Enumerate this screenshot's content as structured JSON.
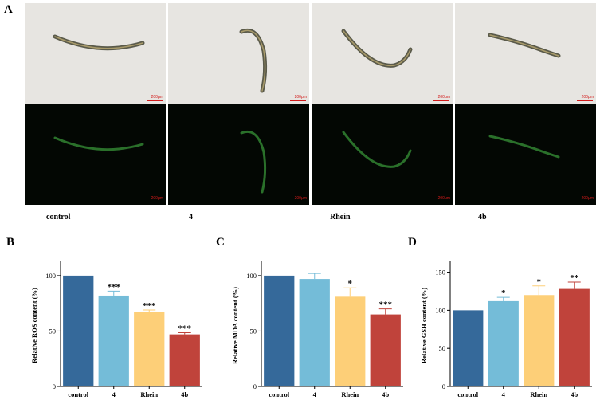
{
  "panels": {
    "a_letter": "A",
    "b_letter": "B",
    "c_letter": "C",
    "d_letter": "D"
  },
  "micrographs": {
    "groups": [
      "control",
      "4",
      "Rhein",
      "4b"
    ],
    "scale_label": "200μm",
    "brightfield_color": "#e7e5e1",
    "fluorescence_color": "#030703",
    "worm_fluorescence_color": "#3c9c3c"
  },
  "colors": {
    "control": "#35699a",
    "4": "#74bcd8",
    "Rhein": "#fdcf78",
    "4b": "#c0433b"
  },
  "chart_data": [
    {
      "type": "bar",
      "categories": [
        "control",
        "4",
        "Rhein",
        "4b"
      ],
      "values": [
        100,
        82,
        67,
        47
      ],
      "errors": [
        0,
        4,
        2,
        1.5
      ],
      "significance": [
        "",
        "***",
        "***",
        "***"
      ],
      "ylabel": "Relative ROS content (%)",
      "ylim": [
        0,
        110
      ],
      "yticks": [
        0,
        50,
        100
      ],
      "grid": false
    },
    {
      "type": "bar",
      "categories": [
        "control",
        "4",
        "Rhein",
        "4b"
      ],
      "values": [
        100,
        97,
        81,
        65
      ],
      "errors": [
        0,
        5,
        8,
        5
      ],
      "significance": [
        "",
        "",
        "*",
        "***"
      ],
      "ylabel": "Relative MDA content (%)",
      "ylim": [
        0,
        110
      ],
      "yticks": [
        0,
        50,
        100
      ],
      "grid": false
    },
    {
      "type": "bar",
      "categories": [
        "control",
        "4",
        "Rhein",
        "4b"
      ],
      "values": [
        100,
        112,
        120,
        128
      ],
      "errors": [
        0,
        5,
        12,
        9
      ],
      "significance": [
        "",
        "*",
        "*",
        "**"
      ],
      "ylabel": "Relative GSH content (%)",
      "ylim": [
        0,
        160
      ],
      "yticks": [
        0,
        50,
        100,
        150
      ],
      "grid": false
    }
  ]
}
